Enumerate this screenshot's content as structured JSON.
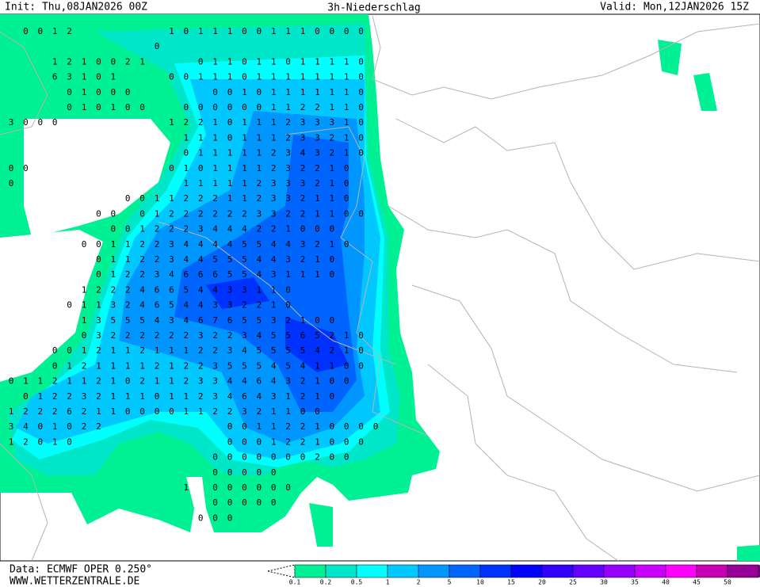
{
  "header": {
    "init": "Init: Thu,08JAN2026 00Z",
    "title": "3h-Niederschlag",
    "valid": "Valid: Mon,12JAN2026 15Z"
  },
  "footer": {
    "data": "Data: ECMWF OPER 0.250°",
    "site": "WWW.WETTERZENTRALE.DE"
  },
  "legend": {
    "labels": [
      0.1,
      0.2,
      0.5,
      1,
      2,
      5,
      10,
      15,
      20,
      25,
      30,
      35,
      40,
      45,
      50
    ],
    "colors": [
      "#00f094",
      "#00e6c8",
      "#00ffff",
      "#00c8ff",
      "#0096ff",
      "#0064ff",
      "#0032ff",
      "#0000ff",
      "#3200ff",
      "#6400ff",
      "#9600ff",
      "#c800ff",
      "#ff00ff",
      "#c800b4",
      "#960096"
    ]
  },
  "map_values": [
    [
      null,
      0,
      0,
      1,
      2,
      null,
      null,
      null,
      null,
      null,
      null,
      1,
      0,
      1,
      1,
      1,
      0,
      0,
      1,
      1,
      1,
      0,
      0,
      0,
      0
    ],
    [
      null,
      null,
      null,
      null,
      null,
      null,
      null,
      null,
      null,
      null,
      0
    ],
    [
      null,
      null,
      null,
      1,
      2,
      1,
      0,
      0,
      2,
      1,
      null,
      null,
      null,
      0,
      1,
      1,
      0,
      1,
      1,
      0,
      1,
      1,
      1,
      1,
      0
    ],
    [
      null,
      null,
      null,
      6,
      3,
      1,
      0,
      1,
      null,
      null,
      null,
      0,
      0,
      1,
      1,
      1,
      0,
      1,
      1,
      1,
      1,
      1,
      1,
      1,
      0
    ],
    [
      null,
      null,
      null,
      null,
      0,
      1,
      0,
      0,
      0,
      null,
      null,
      null,
      null,
      null,
      0,
      0,
      1,
      0,
      1,
      1,
      1,
      1,
      1,
      1,
      0
    ],
    [
      null,
      null,
      null,
      null,
      0,
      1,
      0,
      1,
      0,
      0,
      null,
      null,
      0,
      0,
      0,
      0,
      0,
      0,
      1,
      1,
      2,
      2,
      1,
      1,
      0
    ],
    [
      3,
      0,
      0,
      0,
      null,
      null,
      null,
      null,
      null,
      null,
      null,
      1,
      2,
      2,
      1,
      0,
      1,
      1,
      1,
      2,
      3,
      3,
      3,
      1,
      0
    ],
    [
      null,
      null,
      null,
      null,
      null,
      null,
      null,
      null,
      null,
      null,
      null,
      null,
      1,
      1,
      1,
      0,
      1,
      1,
      1,
      2,
      3,
      3,
      2,
      1,
      0
    ],
    [
      null,
      null,
      null,
      null,
      null,
      null,
      null,
      null,
      null,
      null,
      null,
      null,
      0,
      1,
      1,
      1,
      1,
      1,
      2,
      3,
      4,
      3,
      2,
      1,
      0
    ],
    [
      0,
      0,
      null,
      null,
      null,
      null,
      null,
      null,
      null,
      null,
      null,
      0,
      1,
      0,
      1,
      1,
      1,
      1,
      2,
      3,
      2,
      2,
      1,
      0
    ],
    [
      0,
      null,
      null,
      null,
      null,
      null,
      null,
      null,
      null,
      null,
      null,
      null,
      1,
      1,
      1,
      1,
      1,
      2,
      3,
      3,
      3,
      2,
      1,
      0
    ],
    [
      null,
      null,
      null,
      null,
      null,
      null,
      null,
      null,
      0,
      0,
      1,
      1,
      2,
      2,
      2,
      1,
      1,
      2,
      3,
      3,
      2,
      1,
      1,
      0
    ],
    [
      null,
      null,
      null,
      null,
      null,
      null,
      0,
      0,
      null,
      0,
      1,
      2,
      2,
      2,
      2,
      2,
      2,
      3,
      3,
      2,
      2,
      1,
      1,
      0,
      0
    ],
    [
      null,
      null,
      null,
      null,
      null,
      null,
      null,
      0,
      0,
      1,
      2,
      2,
      2,
      3,
      4,
      4,
      4,
      2,
      2,
      1,
      0,
      0,
      0
    ],
    [
      null,
      null,
      null,
      null,
      null,
      0,
      0,
      1,
      1,
      2,
      2,
      3,
      4,
      4,
      4,
      4,
      5,
      5,
      4,
      4,
      3,
      2,
      1,
      0
    ],
    [
      null,
      null,
      null,
      null,
      null,
      null,
      0,
      1,
      1,
      2,
      2,
      3,
      4,
      4,
      5,
      5,
      5,
      4,
      4,
      3,
      2,
      1,
      0
    ],
    [
      null,
      null,
      null,
      null,
      null,
      null,
      0,
      1,
      2,
      2,
      3,
      4,
      6,
      6,
      6,
      5,
      5,
      4,
      3,
      1,
      1,
      1,
      0
    ],
    [
      null,
      null,
      null,
      null,
      null,
      1,
      2,
      2,
      2,
      4,
      6,
      6,
      5,
      4,
      4,
      3,
      3,
      1,
      1,
      0
    ],
    [
      null,
      null,
      null,
      null,
      0,
      1,
      1,
      3,
      2,
      4,
      6,
      5,
      4,
      4,
      3,
      3,
      2,
      2,
      1,
      0
    ],
    [
      null,
      null,
      null,
      null,
      null,
      1,
      3,
      5,
      5,
      5,
      4,
      3,
      4,
      6,
      7,
      6,
      5,
      5,
      3,
      2,
      1,
      0,
      0
    ],
    [
      null,
      null,
      null,
      null,
      null,
      0,
      3,
      2,
      2,
      2,
      2,
      2,
      2,
      3,
      2,
      2,
      3,
      4,
      5,
      5,
      6,
      5,
      2,
      1,
      0
    ],
    [
      null,
      null,
      null,
      0,
      0,
      1,
      2,
      1,
      1,
      2,
      1,
      1,
      1,
      2,
      2,
      3,
      4,
      5,
      5,
      5,
      5,
      4,
      2,
      1,
      0
    ],
    [
      null,
      null,
      null,
      0,
      1,
      2,
      1,
      1,
      1,
      1,
      2,
      1,
      2,
      2,
      3,
      5,
      5,
      5,
      4,
      5,
      4,
      1,
      1,
      0,
      0
    ],
    [
      0,
      1,
      1,
      2,
      1,
      1,
      2,
      1,
      0,
      2,
      1,
      1,
      2,
      3,
      3,
      4,
      4,
      6,
      4,
      3,
      2,
      1,
      0,
      0
    ],
    [
      null,
      0,
      1,
      2,
      2,
      3,
      2,
      1,
      1,
      1,
      0,
      1,
      1,
      2,
      3,
      4,
      6,
      4,
      3,
      1,
      2,
      1,
      0
    ],
    [
      1,
      2,
      2,
      2,
      6,
      2,
      1,
      1,
      0,
      0,
      0,
      0,
      1,
      1,
      2,
      2,
      3,
      2,
      1,
      1,
      0,
      0
    ],
    [
      3,
      4,
      0,
      1,
      0,
      2,
      2,
      null,
      null,
      null,
      null,
      null,
      null,
      null,
      null,
      0,
      0,
      1,
      1,
      2,
      2,
      1,
      0,
      0,
      0,
      0
    ],
    [
      1,
      2,
      0,
      1,
      0,
      null,
      null,
      null,
      null,
      null,
      null,
      null,
      null,
      null,
      null,
      0,
      0,
      0,
      1,
      2,
      2,
      1,
      0,
      0,
      0
    ],
    [
      null,
      null,
      null,
      null,
      null,
      null,
      null,
      null,
      null,
      null,
      null,
      null,
      null,
      null,
      0,
      0,
      0,
      0,
      0,
      0,
      0,
      2,
      0,
      0
    ],
    [
      null,
      null,
      null,
      null,
      null,
      null,
      null,
      null,
      null,
      null,
      null,
      null,
      null,
      null,
      0,
      0,
      0,
      0,
      0
    ],
    [
      null,
      null,
      null,
      null,
      null,
      null,
      null,
      null,
      null,
      null,
      null,
      null,
      1,
      null,
      0,
      0,
      0,
      0,
      0,
      0
    ],
    [
      null,
      null,
      null,
      null,
      null,
      null,
      null,
      null,
      null,
      null,
      null,
      null,
      null,
      null,
      0,
      0,
      0,
      0,
      0
    ],
    [
      null,
      null,
      null,
      null,
      null,
      null,
      null,
      null,
      null,
      null,
      null,
      null,
      null,
      0,
      0,
      0
    ]
  ]
}
